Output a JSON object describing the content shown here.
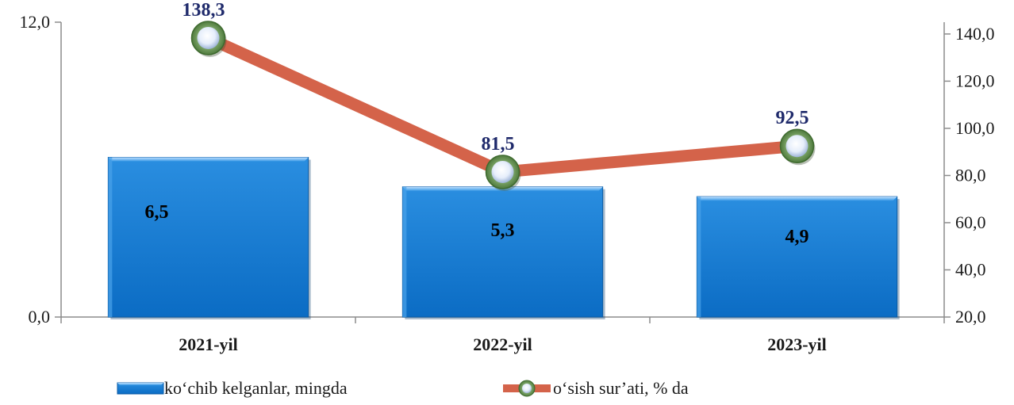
{
  "chart_data": {
    "type": "bar+line",
    "categories": [
      "2021-yil",
      "2022-yil",
      "2023-yil"
    ],
    "series": [
      {
        "name": "ko‘chib kelganlar, mingda",
        "type": "bar",
        "axis": "left",
        "values": [
          6.5,
          5.3,
          4.9
        ],
        "labels": [
          "6,5",
          "5,3",
          "4,9"
        ],
        "color": "#1e7fd0"
      },
      {
        "name": "o‘sish sur’ati, % da",
        "type": "line",
        "axis": "right",
        "values": [
          138.3,
          81.5,
          92.5
        ],
        "labels": [
          "138,3",
          "81,5",
          "92,5"
        ],
        "color": "#d4634a"
      }
    ],
    "left_axis": {
      "ylim": [
        0,
        12
      ],
      "ticks": [
        0,
        12
      ],
      "tick_labels": [
        "0,0",
        "12,0"
      ]
    },
    "right_axis": {
      "ylim": [
        20,
        145
      ],
      "ticks": [
        20,
        40,
        60,
        80,
        100,
        120,
        140
      ],
      "tick_labels": [
        "20,0",
        "40,0",
        "60,0",
        "80,0",
        "100,0",
        "120,0",
        "140,0"
      ]
    },
    "legend": {
      "position": "bottom"
    },
    "grid": false
  }
}
